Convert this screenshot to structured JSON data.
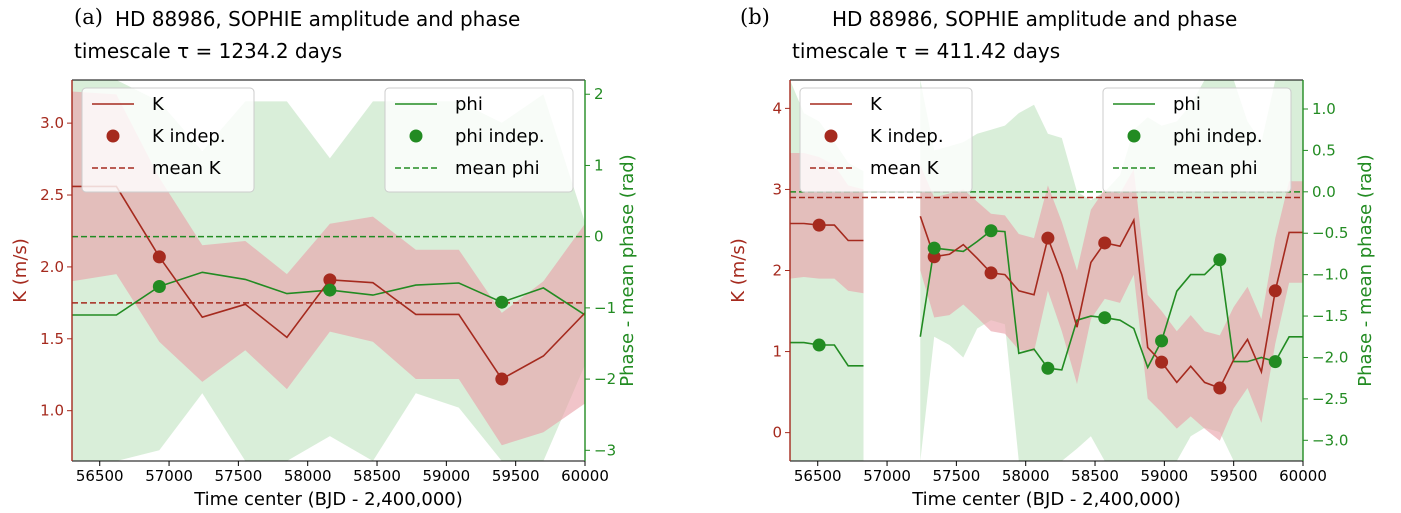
{
  "colors": {
    "k": "#a52a1e",
    "phi": "#228b22",
    "k_band": "#e8a0a8",
    "phi_band": "#c2e3c2",
    "overlap": "#c8bfa8"
  },
  "chart_data": [
    {
      "type": "line",
      "panel_letter": "(a)",
      "title_line1": "HD 88986, SOPHIE amplitude and phase",
      "title_line2": "timescale τ = 1234.2 days",
      "xlabel": "Time center (BJD - 2,400,000)",
      "ylabel_left": "K (m/s)",
      "ylabel_right": "Phase - mean phase (rad)",
      "xlim": [
        56300,
        60000
      ],
      "ylim_left": [
        0.65,
        3.3
      ],
      "ylim_right": [
        -3.15,
        2.2
      ],
      "x_ticks": [
        56500,
        57000,
        57500,
        58000,
        58500,
        59000,
        59500,
        60000
      ],
      "y_ticks_left": [
        1.0,
        1.5,
        2.0,
        2.5,
        3.0
      ],
      "y_tick_labels_left": [
        "1.0",
        "1.5",
        "2.0",
        "2.5",
        "3.0"
      ],
      "y_ticks_right": [
        -3,
        -2,
        -1,
        0,
        1,
        2
      ],
      "y_tick_labels_right": [
        "−3",
        "−2",
        "−1",
        "0",
        "1",
        "2"
      ],
      "legend_k": [
        "K",
        "K indep.",
        "mean K"
      ],
      "legend_phi": [
        "phi",
        "phi indep.",
        "mean phi"
      ],
      "series": [
        {
          "name": "K",
          "axis": "left",
          "x": [
            56300,
            56620,
            56930,
            57240,
            57550,
            57850,
            58160,
            58470,
            58780,
            59090,
            59400,
            59700,
            60000
          ],
          "y": [
            2.56,
            2.56,
            2.07,
            1.65,
            1.74,
            1.51,
            1.91,
            1.89,
            1.67,
            1.67,
            1.22,
            1.38,
            1.68
          ]
        },
        {
          "name": "K indep.",
          "axis": "left",
          "x": [
            56930,
            58160,
            59400
          ],
          "y": [
            2.07,
            1.91,
            1.22
          ]
        },
        {
          "name": "mean K",
          "axis": "left",
          "value": 1.75
        },
        {
          "name": "K band",
          "axis": "left",
          "x": [
            56300,
            56620,
            56930,
            57240,
            57550,
            57850,
            58160,
            58470,
            58780,
            59090,
            59400,
            59700,
            60000
          ],
          "lower": [
            1.9,
            1.95,
            1.48,
            1.2,
            1.42,
            1.15,
            1.55,
            1.48,
            1.22,
            1.22,
            0.76,
            0.85,
            1.05
          ],
          "upper": [
            3.22,
            3.2,
            2.62,
            2.15,
            2.18,
            1.95,
            2.3,
            2.35,
            2.12,
            2.12,
            1.68,
            1.9,
            2.3
          ]
        },
        {
          "name": "phi",
          "axis": "right",
          "x": [
            56300,
            56620,
            56930,
            57240,
            57550,
            57850,
            58160,
            58470,
            58780,
            59090,
            59400,
            59700,
            60000
          ],
          "y": [
            -1.1,
            -1.1,
            -0.7,
            -0.5,
            -0.6,
            -0.8,
            -0.75,
            -0.82,
            -0.68,
            -0.65,
            -0.92,
            -0.72,
            -1.1
          ]
        },
        {
          "name": "phi indep.",
          "axis": "right",
          "x": [
            56930,
            58160,
            59400
          ],
          "y": [
            -0.7,
            -0.75,
            -0.92
          ]
        },
        {
          "name": "mean phi",
          "axis": "right",
          "value": 0.0
        },
        {
          "name": "phi band",
          "axis": "right",
          "x": [
            56300,
            56620,
            56930,
            57240,
            57550,
            57850,
            58160,
            58470,
            58780,
            59090,
            59400,
            59700,
            60000
          ],
          "lower": [
            -3.2,
            -3.2,
            -3.0,
            -2.2,
            -3.2,
            -3.2,
            -2.8,
            -3.2,
            -2.2,
            -2.4,
            -3.2,
            -3.2,
            -1.8
          ],
          "upper": [
            2.2,
            2.2,
            1.9,
            1.2,
            1.9,
            1.9,
            1.1,
            1.9,
            1.9,
            1.9,
            1.6,
            2.0,
            0.2
          ]
        }
      ]
    },
    {
      "type": "line",
      "panel_letter": "(b)",
      "title_line1": "HD 88986, SOPHIE amplitude and phase",
      "title_line2": "timescale τ = 411.42 days",
      "xlabel": "Time center (BJD - 2,400,000)",
      "ylabel_left": "K (m/s)",
      "ylabel_right": "Phase - mean phase (rad)",
      "xlim": [
        56300,
        60000
      ],
      "ylim_left": [
        -0.35,
        4.35
      ],
      "ylim_right": [
        -3.25,
        1.35
      ],
      "x_ticks": [
        56500,
        57000,
        57500,
        58000,
        58500,
        59000,
        59500,
        60000
      ],
      "y_ticks_left": [
        0,
        1,
        2,
        3,
        4
      ],
      "y_tick_labels_left": [
        "0",
        "1",
        "2",
        "3",
        "4"
      ],
      "y_ticks_right": [
        -3.0,
        -2.5,
        -2.0,
        -1.5,
        -1.0,
        -0.5,
        0.0,
        0.5,
        1.0
      ],
      "y_tick_labels_right": [
        "−3.0",
        "−2.5",
        "−2.0",
        "−1.5",
        "−1.0",
        "−0.5",
        "0.0",
        "0.5",
        "1.0"
      ],
      "legend_k": [
        "K",
        "K indep.",
        "mean K"
      ],
      "legend_phi": [
        "phi",
        "phi indep.",
        "mean phi"
      ],
      "series": [
        {
          "name": "K",
          "axis": "left",
          "segments": [
            {
              "x": [
                56300,
                56400,
                56510,
                56620,
                56720,
                56830
              ],
              "y": [
                2.58,
                2.58,
                2.56,
                2.56,
                2.37,
                2.37
              ]
            },
            {
              "x": [
                57240,
                57340,
                57450,
                57550,
                57650,
                57750,
                57850,
                57950,
                58060,
                58160,
                58260,
                58370,
                58470,
                58570,
                58680,
                58780,
                58880,
                58980,
                59090,
                59190,
                59290,
                59400,
                59500,
                59600,
                59700,
                59800,
                59900,
                60000
              ],
              "y": [
                2.67,
                2.17,
                2.2,
                2.32,
                2.15,
                1.97,
                1.95,
                1.75,
                1.7,
                2.4,
                1.95,
                1.3,
                2.1,
                2.34,
                2.3,
                2.62,
                1.05,
                0.87,
                0.62,
                0.82,
                0.62,
                0.55,
                0.9,
                1.15,
                0.75,
                1.75,
                2.47,
                2.47
              ]
            }
          ]
        },
        {
          "name": "K indep.",
          "axis": "left",
          "x": [
            56510,
            57340,
            57750,
            58160,
            58570,
            58980,
            59400,
            59800
          ],
          "y": [
            2.56,
            2.17,
            1.97,
            2.4,
            2.34,
            0.87,
            0.55,
            1.75
          ]
        },
        {
          "name": "mean K",
          "axis": "left",
          "value": 2.9
        },
        {
          "name": "K band",
          "axis": "left",
          "segments": [
            {
              "x": [
                56300,
                56400,
                56510,
                56620,
                56720,
                56830
              ],
              "lower": [
                1.9,
                1.92,
                1.9,
                1.9,
                1.75,
                1.72
              ],
              "upper": [
                3.45,
                3.45,
                3.4,
                3.3,
                3.05,
                3.0
              ]
            },
            {
              "x": [
                57240,
                57340,
                57450,
                57550,
                57650,
                57750,
                57850,
                57950,
                58060,
                58160,
                58260,
                58370,
                58470,
                58570,
                58680,
                58780,
                58880,
                58980,
                59090,
                59190,
                59290,
                59400,
                59500,
                59600,
                59700,
                59800,
                59900,
                60000
              ],
              "lower": [
                2.0,
                1.42,
                1.45,
                1.58,
                1.42,
                1.25,
                1.22,
                1.02,
                1.0,
                1.75,
                1.25,
                0.6,
                1.4,
                1.65,
                1.6,
                1.95,
                0.42,
                0.25,
                0.05,
                0.2,
                0.05,
                -0.1,
                0.3,
                0.55,
                0.12,
                1.1,
                1.85,
                1.85
              ],
              "upper": [
                3.3,
                2.9,
                2.95,
                3.0,
                2.85,
                2.7,
                2.68,
                2.45,
                2.4,
                3.05,
                2.6,
                2.0,
                2.75,
                3.0,
                2.95,
                3.25,
                1.7,
                1.5,
                1.25,
                1.45,
                1.25,
                1.2,
                1.55,
                1.8,
                1.4,
                2.4,
                3.1,
                3.1
              ]
            }
          ]
        },
        {
          "name": "phi",
          "axis": "right",
          "segments": [
            {
              "x": [
                56300,
                56400,
                56510,
                56620,
                56720,
                56830
              ],
              "y": [
                -1.82,
                -1.82,
                -1.85,
                -1.85,
                -2.1,
                -2.1
              ]
            },
            {
              "x": [
                57240,
                57340,
                57450,
                57550,
                57650,
                57750,
                57850,
                57950,
                58060,
                58160,
                58260,
                58370,
                58470,
                58570,
                58680,
                58780,
                58880,
                58980,
                59090,
                59190,
                59290,
                59400,
                59500,
                59600,
                59700,
                59800,
                59900,
                60000
              ],
              "y": [
                -1.75,
                -0.68,
                -0.7,
                -0.72,
                -0.6,
                -0.47,
                -0.48,
                -1.95,
                -1.9,
                -2.13,
                -2.15,
                -1.55,
                -1.5,
                -1.52,
                -1.55,
                -1.65,
                -2.12,
                -1.8,
                -1.2,
                -1.0,
                -1.0,
                -0.82,
                -2.05,
                -2.05,
                -2.0,
                -2.05,
                -1.75,
                -1.75
              ]
            }
          ]
        },
        {
          "name": "phi indep.",
          "axis": "right",
          "x": [
            56510,
            57340,
            57750,
            58160,
            58570,
            58980,
            59400,
            59800
          ],
          "y": [
            -1.85,
            -0.68,
            -0.47,
            -2.13,
            -1.52,
            -1.8,
            -0.82,
            -2.05
          ]
        },
        {
          "name": "mean phi",
          "axis": "right",
          "value": 0.0
        },
        {
          "name": "phi band",
          "axis": "right",
          "segments": [
            {
              "x": [
                56300,
                56400,
                56510,
                56620,
                56720,
                56830
              ],
              "lower": [
                -3.3,
                -3.3,
                -3.3,
                -3.3,
                -3.3,
                -3.3
              ],
              "upper": [
                1.35,
                0.95,
                0.85,
                0.6,
                0.35,
                0.25
              ]
            },
            {
              "x": [
                57240,
                57340,
                57450,
                57550,
                57650,
                57750,
                57850,
                57950,
                58060,
                58160,
                58260,
                58370,
                58470,
                58570,
                58680,
                58780,
                58880,
                58980,
                59090,
                59190,
                59290,
                59400,
                59500,
                59600,
                59700,
                59800,
                59900,
                60000
              ],
              "lower": [
                -3.3,
                -1.75,
                -1.85,
                -2.0,
                -1.65,
                -1.55,
                -1.6,
                -3.3,
                -3.3,
                -3.3,
                -3.3,
                -3.1,
                -2.95,
                -3.3,
                -3.3,
                -3.3,
                -3.3,
                -3.3,
                -3.3,
                -2.95,
                -2.85,
                -2.9,
                -3.3,
                -3.3,
                -3.3,
                -3.3,
                -3.3,
                -3.3
              ],
              "upper": [
                1.35,
                0.5,
                0.55,
                0.6,
                0.7,
                0.75,
                0.8,
                0.95,
                1.05,
                0.7,
                0.65,
                0.0,
                -0.1,
                0.0,
                0.2,
                0.75,
                0.9,
                0.8,
                0.85,
                1.05,
                1.35,
                1.35,
                1.35,
                0.85,
                0.6,
                1.35,
                1.35,
                1.35
              ]
            }
          ]
        }
      ]
    }
  ]
}
